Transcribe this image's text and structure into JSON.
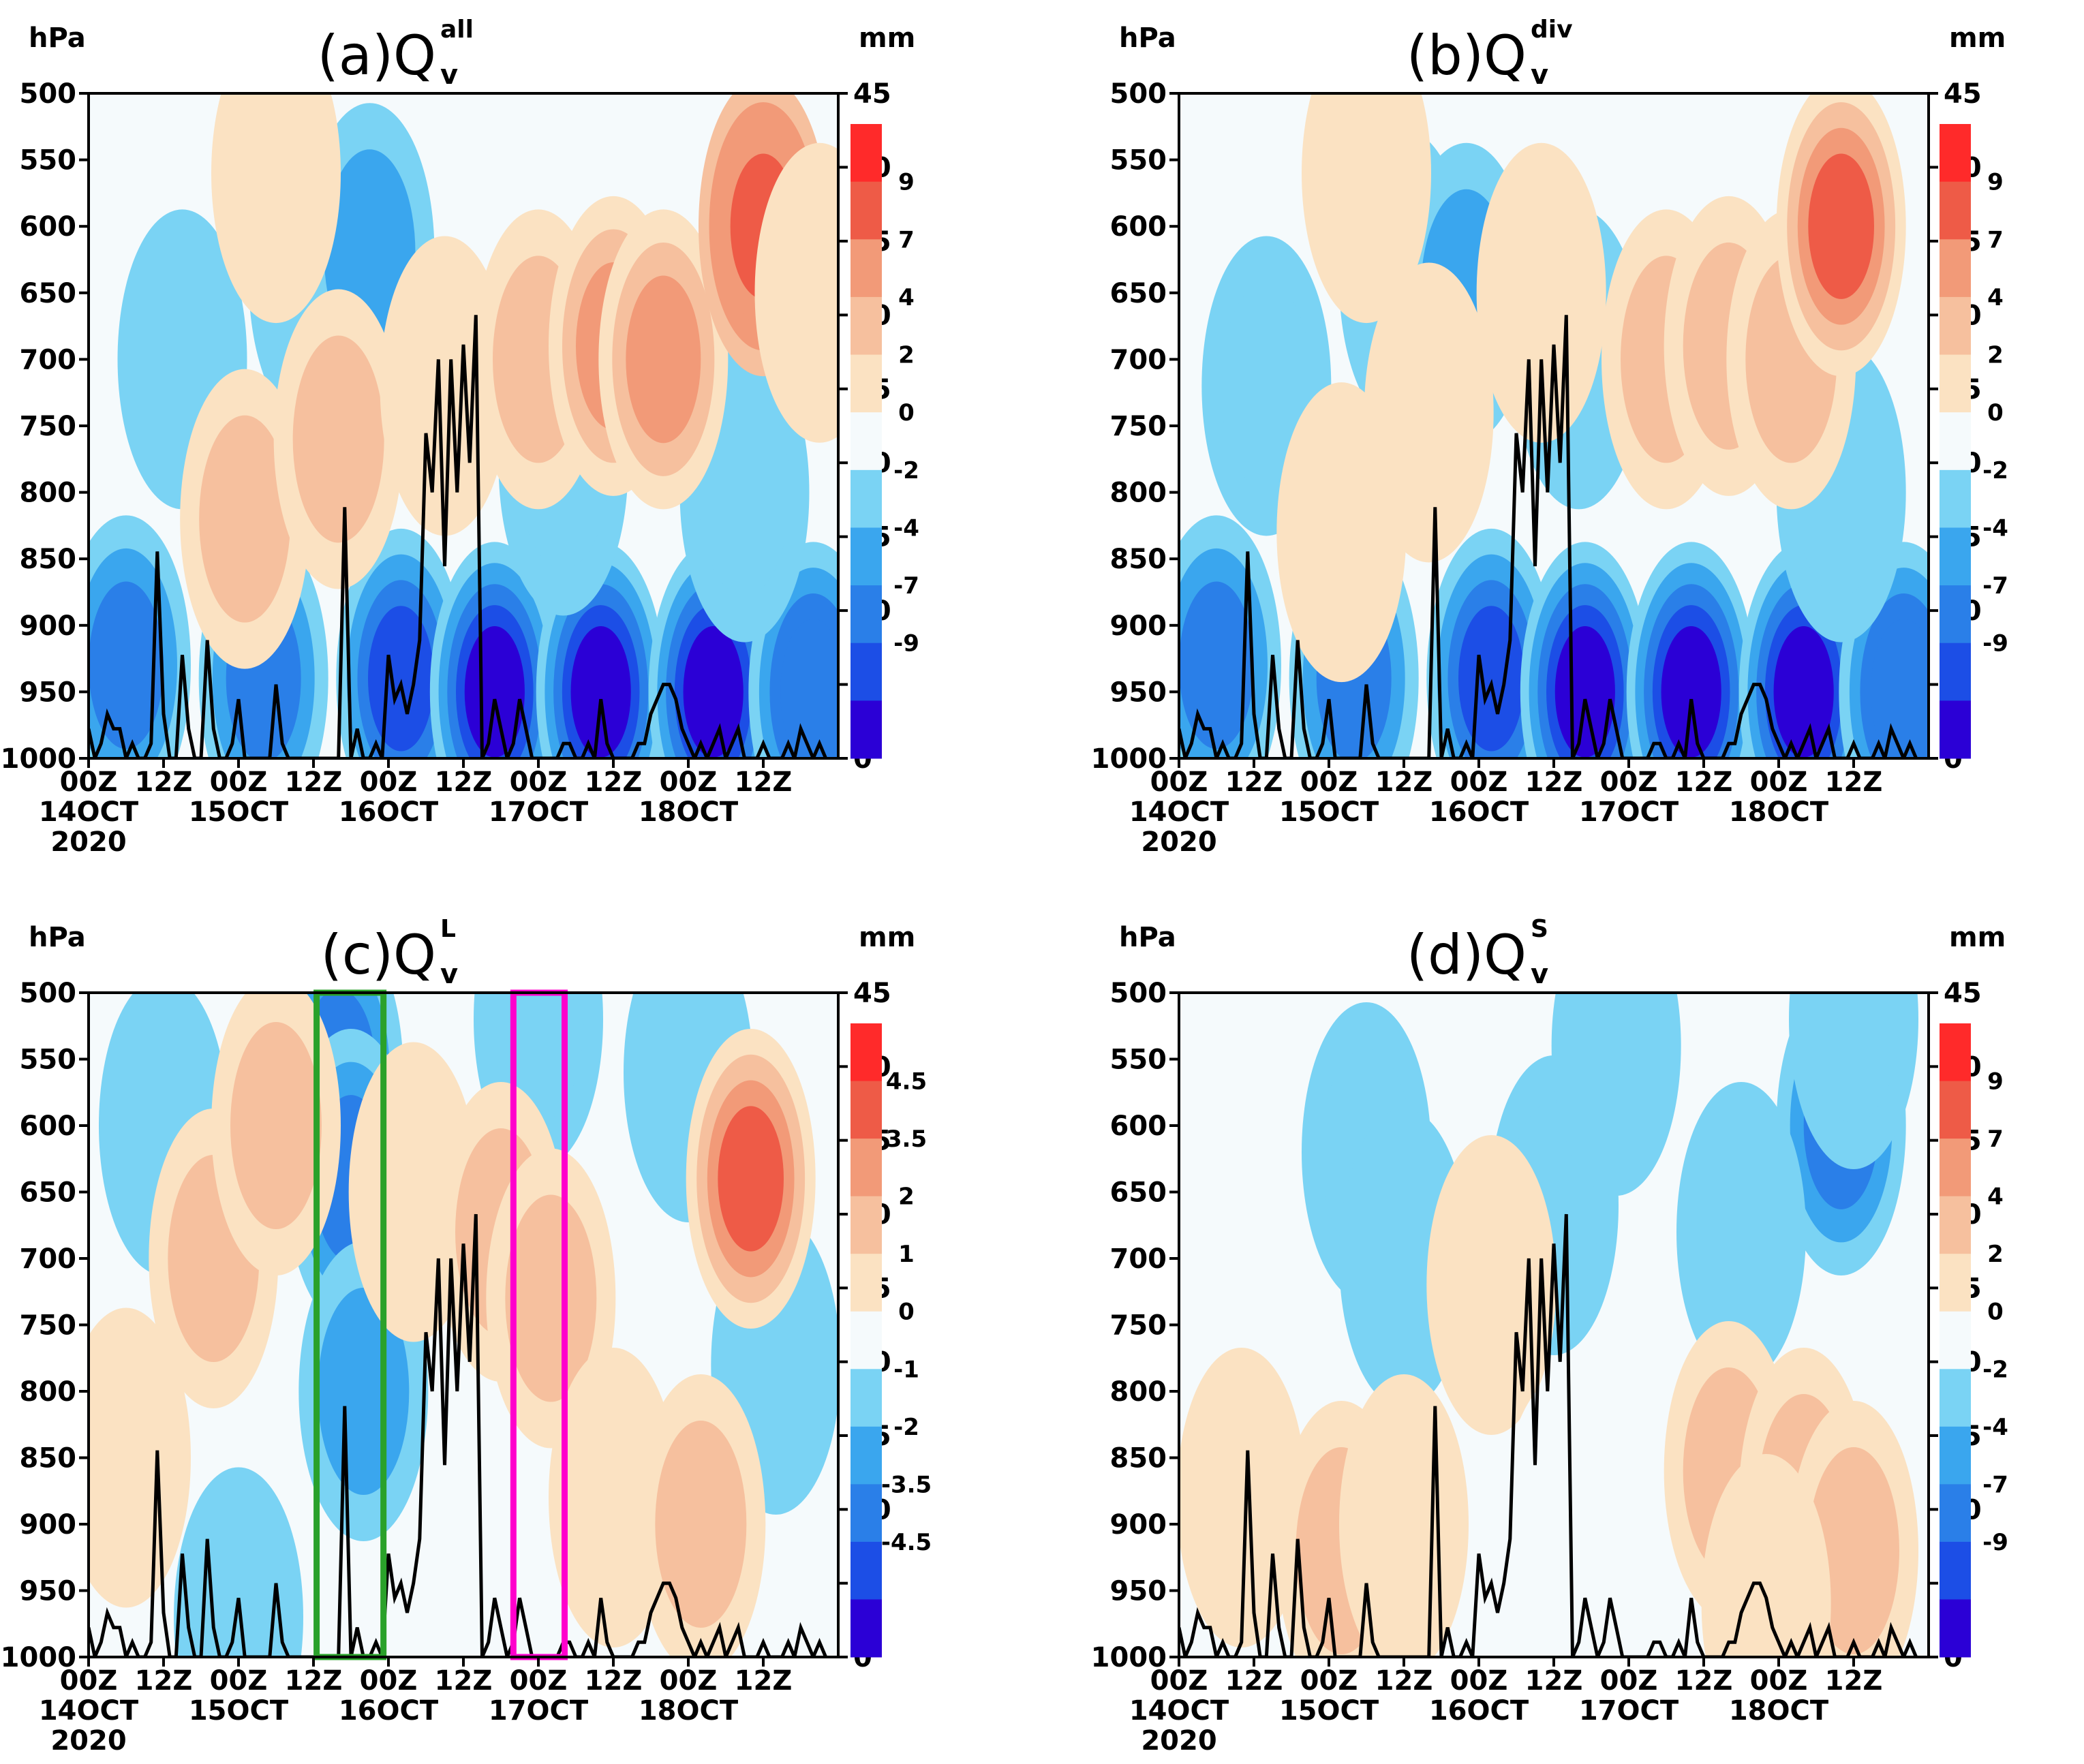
{
  "chart_data": [
    {
      "panel": "a",
      "type": "heatmap",
      "title": {
        "prefix": "(a)Q",
        "superscript": "all",
        "subscript": "v"
      },
      "left_axis": {
        "unit": "hPa",
        "ticks": [
          500,
          550,
          600,
          650,
          700,
          750,
          800,
          850,
          900,
          950,
          1000
        ],
        "reversed": true
      },
      "right_axis": {
        "unit": "mm",
        "ticks": [
          0,
          5,
          10,
          15,
          20,
          25,
          30,
          35,
          40,
          45
        ],
        "range": [
          0,
          45
        ]
      },
      "x_axis": {
        "ticks": [
          "00Z",
          "12Z",
          "00Z",
          "12Z",
          "00Z",
          "12Z",
          "00Z",
          "12Z",
          "00Z",
          "12Z"
        ],
        "date_labels": [
          "14OCT",
          "15OCT",
          "16OCT",
          "17OCT",
          "18OCT"
        ],
        "year_label": "2020",
        "range_hours": [
          0,
          120
        ]
      },
      "colorbar": {
        "labels": [
          "9",
          "7",
          "4",
          "2",
          "0",
          "-2",
          "-4",
          "-7",
          "-9"
        ]
      },
      "features": [
        {
          "t": 6,
          "p": 930,
          "v": -5
        },
        {
          "t": 28,
          "p": 940,
          "v": -6
        },
        {
          "t": 50,
          "p": 940,
          "v": -8
        },
        {
          "t": 65,
          "p": 950,
          "v": -9
        },
        {
          "t": 82,
          "p": 950,
          "v": -9
        },
        {
          "t": 100,
          "p": 950,
          "v": -9
        },
        {
          "t": 116,
          "p": 950,
          "v": -7
        },
        {
          "t": 15,
          "p": 700,
          "v": -2
        },
        {
          "t": 36,
          "p": 640,
          "v": -3
        },
        {
          "t": 45,
          "p": 620,
          "v": -4
        },
        {
          "t": 76,
          "p": 780,
          "v": -3
        },
        {
          "t": 105,
          "p": 800,
          "v": -3
        },
        {
          "t": 25,
          "p": 820,
          "v": 3
        },
        {
          "t": 40,
          "p": 760,
          "v": 3
        },
        {
          "t": 57,
          "p": 720,
          "v": 2
        },
        {
          "t": 72,
          "p": 700,
          "v": 4
        },
        {
          "t": 84,
          "p": 690,
          "v": 5
        },
        {
          "t": 92,
          "p": 700,
          "v": 5
        },
        {
          "t": 108,
          "p": 600,
          "v": 8
        },
        {
          "t": 30,
          "p": 560,
          "v": 2
        },
        {
          "t": 117,
          "p": 650,
          "v": 2
        }
      ],
      "precip_mm": [
        2,
        0,
        1,
        3,
        2,
        2,
        0,
        1,
        0,
        0,
        1,
        14,
        3,
        0,
        0,
        7,
        2,
        0,
        0,
        8,
        2,
        0,
        0,
        1,
        4,
        0,
        0,
        0,
        0,
        0,
        5,
        1,
        0,
        0,
        0,
        0,
        0,
        0,
        0,
        0,
        0,
        17,
        0,
        2,
        0,
        0,
        1,
        0,
        7,
        4,
        5,
        3,
        5,
        8,
        22,
        18,
        27,
        13,
        27,
        18,
        28,
        20,
        30,
        0,
        1,
        4,
        2,
        0,
        1,
        4,
        2,
        0,
        0,
        0,
        0,
        0,
        1,
        1,
        0,
        0,
        1,
        0,
        4,
        1,
        0,
        0,
        0,
        0,
        1,
        1,
        3,
        4,
        5,
        5,
        4,
        2,
        1,
        0,
        1,
        0,
        1,
        2,
        0,
        1,
        2,
        0,
        0,
        0,
        1,
        0,
        0,
        0,
        1,
        0,
        2,
        1,
        0,
        1,
        0
      ]
    },
    {
      "panel": "b",
      "type": "heatmap",
      "title": {
        "prefix": "(b)Q",
        "superscript": "div",
        "subscript": "v"
      },
      "left_axis": {
        "unit": "hPa",
        "ticks": [
          500,
          550,
          600,
          650,
          700,
          750,
          800,
          850,
          900,
          950,
          1000
        ],
        "reversed": true
      },
      "right_axis": {
        "unit": "mm",
        "ticks": [
          0,
          5,
          10,
          15,
          20,
          25,
          30,
          35,
          40,
          45
        ],
        "range": [
          0,
          45
        ]
      },
      "x_axis": {
        "ticks": [
          "00Z",
          "12Z",
          "00Z",
          "12Z",
          "00Z",
          "12Z",
          "00Z",
          "12Z",
          "00Z",
          "12Z"
        ],
        "date_labels": [
          "14OCT",
          "15OCT",
          "16OCT",
          "17OCT",
          "18OCT"
        ],
        "year_label": "2020",
        "range_hours": [
          0,
          120
        ]
      },
      "colorbar": {
        "labels": [
          "9",
          "7",
          "4",
          "2",
          "0",
          "-2",
          "-4",
          "-7",
          "-9"
        ]
      },
      "features": [
        {
          "t": 6,
          "p": 930,
          "v": -5
        },
        {
          "t": 28,
          "p": 940,
          "v": -6
        },
        {
          "t": 50,
          "p": 940,
          "v": -8
        },
        {
          "t": 65,
          "p": 950,
          "v": -9
        },
        {
          "t": 82,
          "p": 950,
          "v": -9
        },
        {
          "t": 100,
          "p": 950,
          "v": -9
        },
        {
          "t": 116,
          "p": 950,
          "v": -7
        },
        {
          "t": 14,
          "p": 720,
          "v": -3
        },
        {
          "t": 36,
          "p": 640,
          "v": -3
        },
        {
          "t": 46,
          "p": 650,
          "v": -4
        },
        {
          "t": 64,
          "p": 700,
          "v": -3
        },
        {
          "t": 106,
          "p": 800,
          "v": -3
        },
        {
          "t": 26,
          "p": 830,
          "v": 2
        },
        {
          "t": 40,
          "p": 740,
          "v": 2
        },
        {
          "t": 58,
          "p": 650,
          "v": 2
        },
        {
          "t": 78,
          "p": 700,
          "v": 3
        },
        {
          "t": 88,
          "p": 690,
          "v": 4
        },
        {
          "t": 98,
          "p": 700,
          "v": 3
        },
        {
          "t": 106,
          "p": 600,
          "v": 7
        },
        {
          "t": 30,
          "p": 560,
          "v": 2
        }
      ],
      "precip_mm": [
        2,
        0,
        1,
        3,
        2,
        2,
        0,
        1,
        0,
        0,
        1,
        14,
        3,
        0,
        0,
        7,
        2,
        0,
        0,
        8,
        2,
        0,
        0,
        1,
        4,
        0,
        0,
        0,
        0,
        0,
        5,
        1,
        0,
        0,
        0,
        0,
        0,
        0,
        0,
        0,
        0,
        17,
        0,
        2,
        0,
        0,
        1,
        0,
        7,
        4,
        5,
        3,
        5,
        8,
        22,
        18,
        27,
        13,
        27,
        18,
        28,
        20,
        30,
        0,
        1,
        4,
        2,
        0,
        1,
        4,
        2,
        0,
        0,
        0,
        0,
        0,
        1,
        1,
        0,
        0,
        1,
        0,
        4,
        1,
        0,
        0,
        0,
        0,
        1,
        1,
        3,
        4,
        5,
        5,
        4,
        2,
        1,
        0,
        1,
        0,
        1,
        2,
        0,
        1,
        2,
        0,
        0,
        0,
        1,
        0,
        0,
        0,
        1,
        0,
        2,
        1,
        0,
        1,
        0
      ]
    },
    {
      "panel": "c",
      "type": "heatmap",
      "title": {
        "prefix": "(c)Q",
        "superscript": "L",
        "subscript": "v"
      },
      "left_axis": {
        "unit": "hPa",
        "ticks": [
          500,
          550,
          600,
          650,
          700,
          750,
          800,
          850,
          900,
          950,
          1000
        ],
        "reversed": true
      },
      "right_axis": {
        "unit": "mm",
        "ticks": [
          0,
          5,
          10,
          15,
          20,
          25,
          30,
          35,
          40,
          45
        ],
        "range": [
          0,
          45
        ]
      },
      "x_axis": {
        "ticks": [
          "00Z",
          "12Z",
          "00Z",
          "12Z",
          "00Z",
          "12Z",
          "00Z",
          "12Z",
          "00Z",
          "12Z"
        ],
        "date_labels": [
          "14OCT",
          "15OCT",
          "16OCT",
          "17OCT",
          "18OCT"
        ],
        "year_label": "2020",
        "range_hours": [
          0,
          120
        ]
      },
      "colorbar": {
        "labels": [
          "4.5",
          "3.5",
          "2",
          "1",
          "0",
          "-1",
          "-2",
          "-3.5",
          "-4.5"
        ]
      },
      "boxes": [
        {
          "color": "#2aa12a",
          "t0": 36.5,
          "t1": 47.2,
          "p0": 500,
          "p1": 1000
        },
        {
          "color": "#ff00cc",
          "t0": 68.0,
          "t1": 76.2,
          "p0": 500,
          "p1": 1000
        }
      ],
      "features": [
        {
          "t": 40,
          "p": 560,
          "v": -3
        },
        {
          "t": 42,
          "p": 640,
          "v": -2.5
        },
        {
          "t": 44,
          "p": 800,
          "v": -2
        },
        {
          "t": 72,
          "p": 520,
          "v": -1.5
        },
        {
          "t": 12,
          "p": 600,
          "v": -1
        },
        {
          "t": 24,
          "p": 970,
          "v": -1
        },
        {
          "t": 110,
          "p": 780,
          "v": -1
        },
        {
          "t": 96,
          "p": 560,
          "v": -1
        },
        {
          "t": 6,
          "p": 850,
          "v": 1
        },
        {
          "t": 20,
          "p": 700,
          "v": 1.5
        },
        {
          "t": 30,
          "p": 600,
          "v": 1.5
        },
        {
          "t": 52,
          "p": 650,
          "v": 1
        },
        {
          "t": 66,
          "p": 680,
          "v": 1.5
        },
        {
          "t": 74,
          "p": 730,
          "v": 1.5
        },
        {
          "t": 84,
          "p": 880,
          "v": 1
        },
        {
          "t": 98,
          "p": 900,
          "v": 1.5
        },
        {
          "t": 106,
          "p": 640,
          "v": 3.5
        }
      ],
      "precip_mm": [
        2,
        0,
        1,
        3,
        2,
        2,
        0,
        1,
        0,
        0,
        1,
        14,
        3,
        0,
        0,
        7,
        2,
        0,
        0,
        8,
        2,
        0,
        0,
        1,
        4,
        0,
        0,
        0,
        0,
        0,
        5,
        1,
        0,
        0,
        0,
        0,
        0,
        0,
        0,
        0,
        0,
        17,
        0,
        2,
        0,
        0,
        1,
        0,
        7,
        4,
        5,
        3,
        5,
        8,
        22,
        18,
        27,
        13,
        27,
        18,
        28,
        20,
        30,
        0,
        1,
        4,
        2,
        0,
        1,
        4,
        2,
        0,
        0,
        0,
        0,
        0,
        1,
        1,
        0,
        0,
        1,
        0,
        4,
        1,
        0,
        0,
        0,
        0,
        1,
        1,
        3,
        4,
        5,
        5,
        4,
        2,
        1,
        0,
        1,
        0,
        1,
        2,
        0,
        1,
        2,
        0,
        0,
        0,
        1,
        0,
        0,
        0,
        1,
        0,
        2,
        1,
        0,
        1,
        0
      ]
    },
    {
      "panel": "d",
      "type": "heatmap",
      "title": {
        "prefix": "(d)Q",
        "superscript": "S",
        "subscript": "v"
      },
      "left_axis": {
        "unit": "hPa",
        "ticks": [
          500,
          550,
          600,
          650,
          700,
          750,
          800,
          850,
          900,
          950,
          1000
        ],
        "reversed": true
      },
      "right_axis": {
        "unit": "mm",
        "ticks": [
          0,
          5,
          10,
          15,
          20,
          25,
          30,
          35,
          40,
          45
        ],
        "range": [
          0,
          45
        ]
      },
      "x_axis": {
        "ticks": [
          "00Z",
          "12Z",
          "00Z",
          "12Z",
          "00Z",
          "12Z",
          "00Z",
          "12Z",
          "00Z",
          "12Z"
        ],
        "date_labels": [
          "14OCT",
          "15OCT",
          "16OCT",
          "17OCT",
          "18OCT"
        ],
        "year_label": "2020",
        "range_hours": [
          0,
          120
        ]
      },
      "colorbar": {
        "labels": [
          "9",
          "7",
          "4",
          "2",
          "0",
          "-2",
          "-4",
          "-7",
          "-9"
        ]
      },
      "features": [
        {
          "t": 30,
          "p": 620,
          "v": -3
        },
        {
          "t": 36,
          "p": 700,
          "v": -2
        },
        {
          "t": 60,
          "p": 660,
          "v": -3
        },
        {
          "t": 70,
          "p": 540,
          "v": -2
        },
        {
          "t": 106,
          "p": 600,
          "v": -6
        },
        {
          "t": 108,
          "p": 520,
          "v": -3
        },
        {
          "t": 90,
          "p": 680,
          "v": -2
        },
        {
          "t": 10,
          "p": 560,
          "v": -1
        },
        {
          "t": 10,
          "p": 880,
          "v": 2
        },
        {
          "t": 26,
          "p": 920,
          "v": 3
        },
        {
          "t": 36,
          "p": 900,
          "v": 2
        },
        {
          "t": 50,
          "p": 720,
          "v": 2
        },
        {
          "t": 62,
          "p": 900,
          "v": 1
        },
        {
          "t": 88,
          "p": 860,
          "v": 4
        },
        {
          "t": 100,
          "p": 880,
          "v": 4
        },
        {
          "t": 108,
          "p": 920,
          "v": 4
        },
        {
          "t": 94,
          "p": 960,
          "v": 2
        }
      ],
      "precip_mm": [
        2,
        0,
        1,
        3,
        2,
        2,
        0,
        1,
        0,
        0,
        1,
        14,
        3,
        0,
        0,
        7,
        2,
        0,
        0,
        8,
        2,
        0,
        0,
        1,
        4,
        0,
        0,
        0,
        0,
        0,
        5,
        1,
        0,
        0,
        0,
        0,
        0,
        0,
        0,
        0,
        0,
        17,
        0,
        2,
        0,
        0,
        1,
        0,
        7,
        4,
        5,
        3,
        5,
        8,
        22,
        18,
        27,
        13,
        27,
        18,
        28,
        20,
        30,
        0,
        1,
        4,
        2,
        0,
        1,
        4,
        2,
        0,
        0,
        0,
        0,
        0,
        1,
        1,
        0,
        0,
        1,
        0,
        4,
        1,
        0,
        0,
        0,
        0,
        1,
        1,
        3,
        4,
        5,
        5,
        4,
        2,
        1,
        0,
        1,
        0,
        1,
        2,
        0,
        1,
        2,
        0,
        0,
        0,
        1,
        0,
        0,
        0,
        1,
        0,
        2,
        1,
        0,
        1,
        0
      ]
    }
  ],
  "colors": {
    "scale": [
      "#2b00d6",
      "#1c4ee6",
      "#2a7fe8",
      "#3aa6ee",
      "#7ad3f4",
      "#f5fafc",
      "#fbe2c2",
      "#f6c09e",
      "#f29a78",
      "#ee5b47",
      "#ff2a2a"
    ],
    "precip_line": "#000000"
  }
}
